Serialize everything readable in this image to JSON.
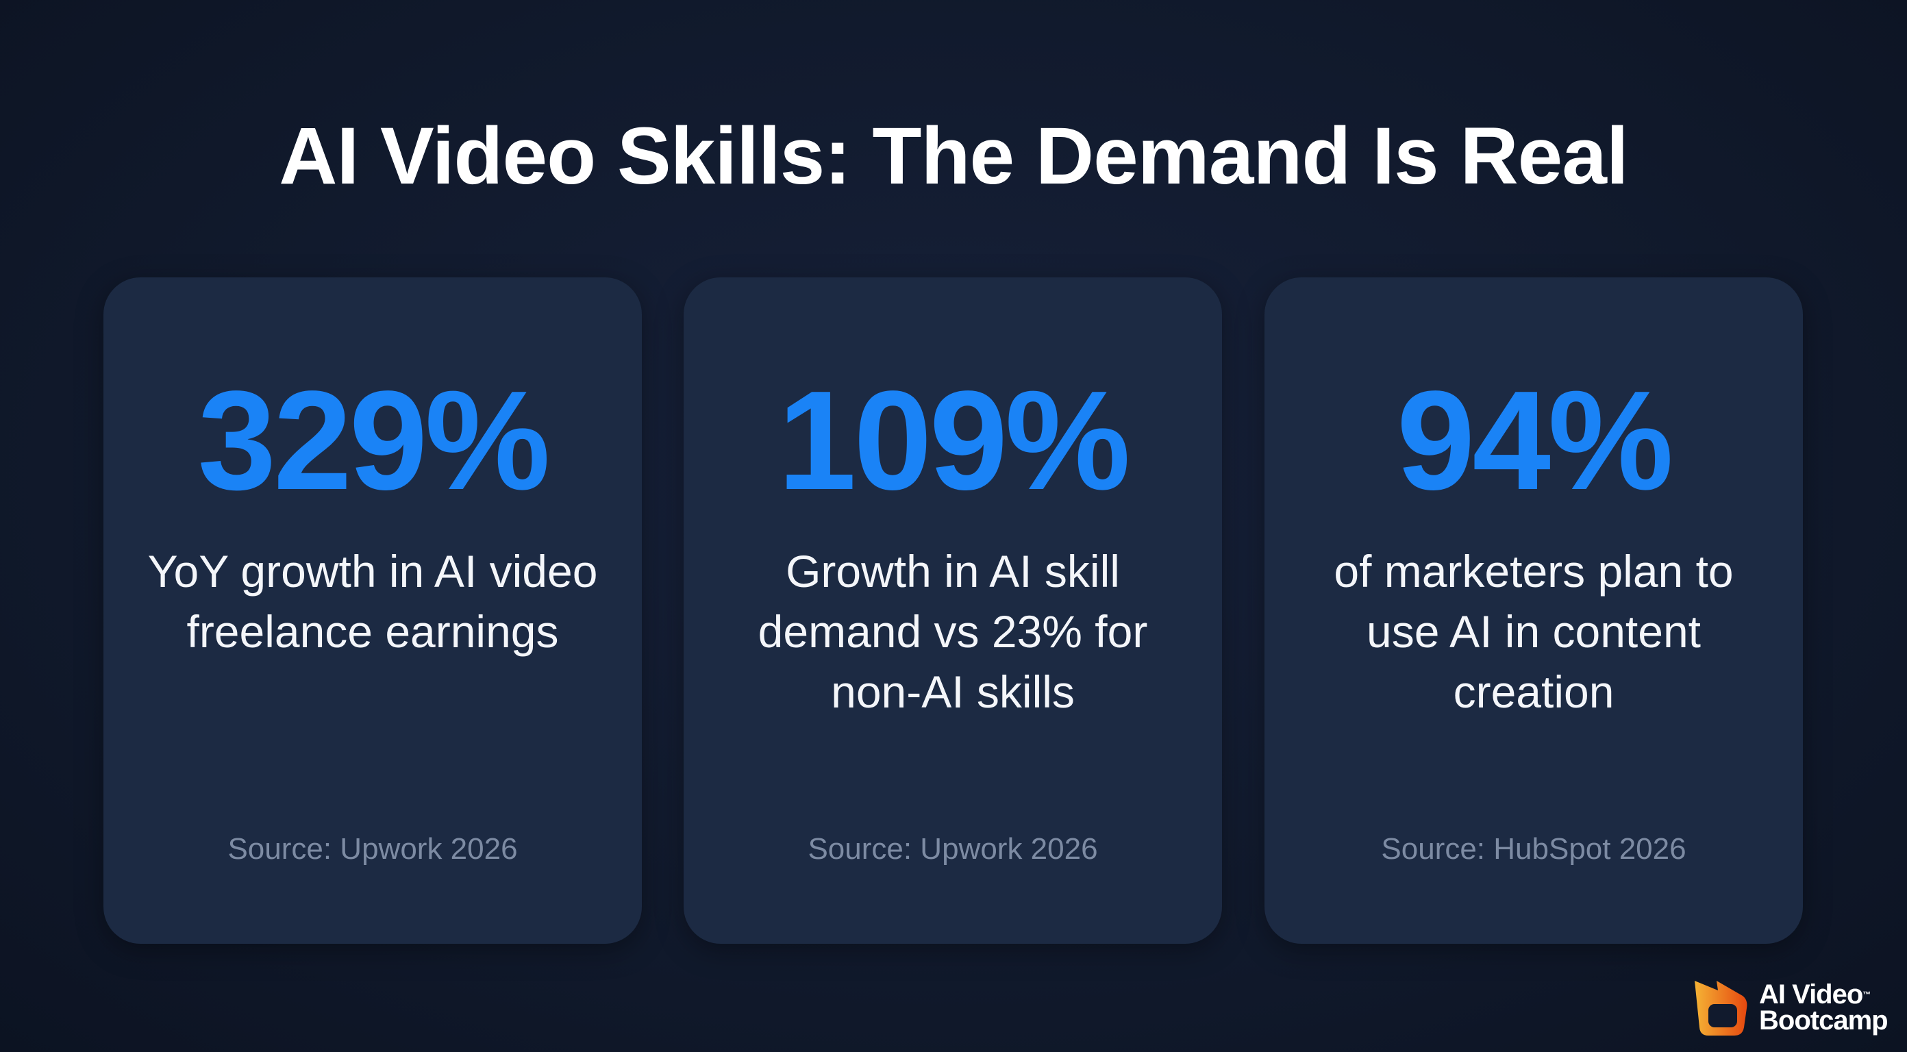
{
  "title": "AI Video Skills: The Demand Is Real",
  "cards": [
    {
      "stat": "329%",
      "description": "YoY growth in AI video freelance earnings",
      "source": "Source: Upwork 2026"
    },
    {
      "stat": "109%",
      "description": "Growth in AI skill demand vs 23% for non-AI skills",
      "source": "Source: Upwork 2026"
    },
    {
      "stat": "94%",
      "description": "of marketers plan to use AI in content creation",
      "source": "Source: HubSpot 2026"
    }
  ],
  "logo": {
    "line1": "AI Video",
    "tm": "™",
    "line2": "Bootcamp"
  },
  "colors": {
    "background": "#111a2d",
    "card": "#1c2a43",
    "accent": "#1a83f6",
    "source_text": "#7d8ba3",
    "logo_gradient": [
      "#f5b335",
      "#e5480f"
    ]
  }
}
